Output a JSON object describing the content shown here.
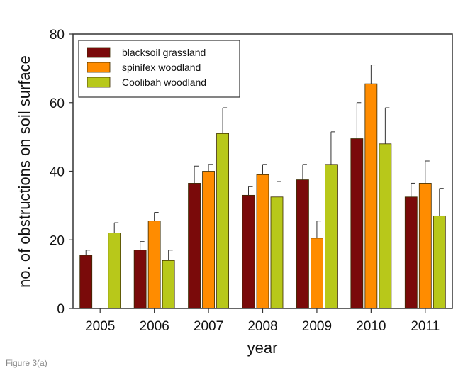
{
  "caption": "Figure 3(a)",
  "colors": {
    "blacksoil": "#7a0a0a",
    "spinifex": "#ff8c00",
    "coolibah": "#b8c81a",
    "axis": "#333333"
  },
  "chart_data": {
    "type": "bar",
    "xlabel": "year",
    "ylabel": "no. of obstructions on soil surface",
    "ylim": [
      0,
      80
    ],
    "yticks": [
      0,
      20,
      40,
      60,
      80
    ],
    "categories": [
      "2005",
      "2006",
      "2007",
      "2008",
      "2009",
      "2010",
      "2011"
    ],
    "legend_position": "top-left",
    "series": [
      {
        "name": "blacksoil grassland",
        "color": "#7a0a0a",
        "values": [
          15.5,
          17,
          36.5,
          33,
          37.5,
          49.5,
          32.5
        ],
        "errors": [
          1.5,
          2.5,
          5,
          2.5,
          4.5,
          10.5,
          4
        ]
      },
      {
        "name": "spinifex woodland",
        "color": "#ff8c00",
        "values": [
          0,
          25.5,
          40,
          39,
          20.5,
          65.5,
          36.5
        ],
        "errors": [
          0,
          2.5,
          2,
          3,
          5,
          5.5,
          6.5
        ]
      },
      {
        "name": "Coolibah woodland",
        "color": "#b8c81a",
        "values": [
          22,
          14,
          51,
          32.5,
          42,
          48,
          27
        ],
        "errors": [
          3,
          3,
          7.5,
          4.5,
          9.5,
          10.5,
          8
        ]
      }
    ]
  }
}
